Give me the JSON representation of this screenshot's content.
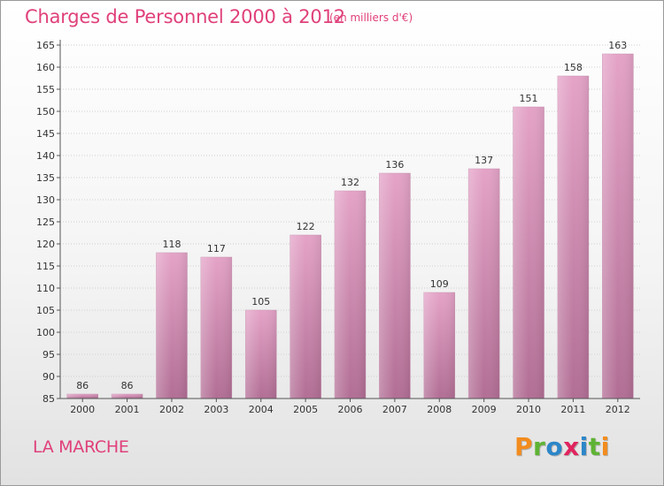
{
  "title": "Charges de Personnel 2000 à 2012",
  "subtitle": "(en milliers d'€)",
  "town": "LA MARCHE",
  "logo": {
    "letters": [
      "P",
      "r",
      "o",
      "x",
      "i",
      "t",
      "i"
    ],
    "colors": [
      "#f28c1e",
      "#5fb334",
      "#2d86c8",
      "#e0245e",
      "#2d86c8",
      "#5fb334",
      "#f28c1e"
    ]
  },
  "colors": {
    "accent": "#e0407a",
    "bar": "#d88bb3",
    "grid": "#cccccc"
  },
  "chart_data": {
    "type": "bar",
    "title": "Charges de Personnel 2000 à 2012",
    "subtitle": "(en milliers d'€)",
    "categories": [
      "2000",
      "2001",
      "2002",
      "2003",
      "2004",
      "2005",
      "2006",
      "2007",
      "2008",
      "2009",
      "2010",
      "2011",
      "2012"
    ],
    "values": [
      86,
      86,
      118,
      117,
      105,
      122,
      132,
      136,
      109,
      137,
      151,
      158,
      163
    ],
    "ylim": [
      85,
      165
    ],
    "yticks": [
      85,
      90,
      95,
      100,
      105,
      110,
      115,
      120,
      125,
      130,
      135,
      140,
      145,
      150,
      155,
      160,
      165
    ],
    "grid": true,
    "data_labels": true
  }
}
